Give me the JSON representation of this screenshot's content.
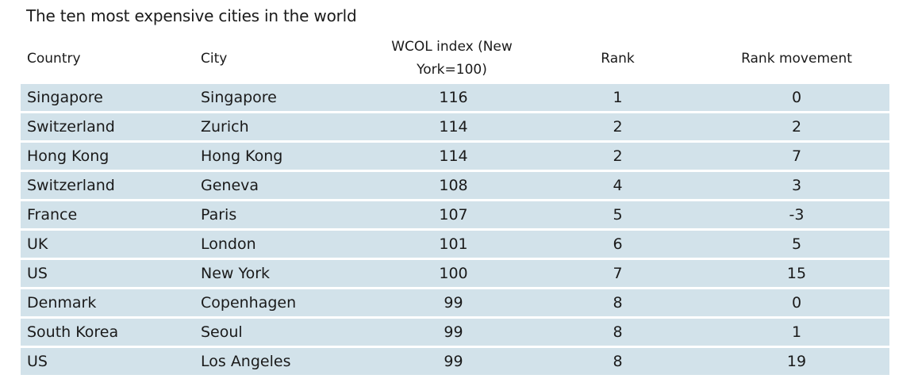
{
  "title": "The ten most expensive cities in the world",
  "chart_data": {
    "type": "table",
    "title": "The ten most expensive cities in the world",
    "columns": [
      "Country",
      "City",
      "WCOL index (New York=100)",
      "Rank",
      "Rank movement"
    ],
    "rows": [
      [
        "Singapore",
        "Singapore",
        "116",
        "1",
        "0"
      ],
      [
        "Switzerland",
        "Zurich",
        "114",
        "2",
        "2"
      ],
      [
        "Hong Kong",
        "Hong Kong",
        "114",
        "2",
        "7"
      ],
      [
        "Switzerland",
        "Geneva",
        "108",
        "4",
        "3"
      ],
      [
        "France",
        "Paris",
        "107",
        "5",
        "-3"
      ],
      [
        "UK",
        "London",
        "101",
        "6",
        "5"
      ],
      [
        "US",
        "New York",
        "100",
        "7",
        "15"
      ],
      [
        "Denmark",
        "Copenhagen",
        "99",
        "8",
        "0"
      ],
      [
        "South Korea",
        "Seoul",
        "99",
        "8",
        "1"
      ],
      [
        "US",
        "Los Angeles",
        "99",
        "8",
        "19"
      ]
    ],
    "row_fill_color": "#d2e2ea"
  }
}
